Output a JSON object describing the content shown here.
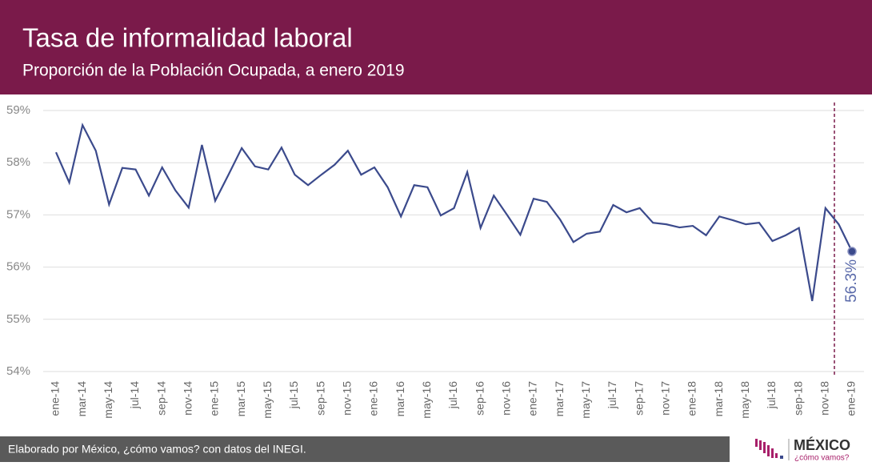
{
  "chart_data": {
    "type": "line",
    "title": "Tasa de informalidad laboral",
    "subtitle": "Proporción de la Población Ocupada, a enero 2019",
    "categories": [
      "ene-14",
      null,
      "mar-14",
      null,
      "may-14",
      null,
      "jul-14",
      null,
      "sep-14",
      null,
      "nov-14",
      null,
      "ene-15",
      null,
      "mar-15",
      null,
      "may-15",
      null,
      "jul-15",
      null,
      "sep-15",
      null,
      "nov-15",
      null,
      "ene-16",
      null,
      "mar-16",
      null,
      "may-16",
      null,
      "jul-16",
      null,
      "sep-16",
      null,
      "nov-16",
      null,
      "ene-17",
      null,
      "mar-17",
      null,
      "may-17",
      null,
      "jul-17",
      null,
      "sep-17",
      null,
      "nov-17",
      null,
      "ene-18",
      null,
      "mar-18",
      null,
      "may-18",
      null,
      "jul-18",
      null,
      "sep-18",
      null,
      "nov-18",
      null,
      "ene-19"
    ],
    "series": [
      {
        "color": "#3b4a8c",
        "values": [
          58.2,
          57.62,
          58.72,
          58.23,
          57.2,
          57.9,
          57.87,
          57.37,
          57.91,
          57.47,
          57.14,
          58.34,
          57.27,
          57.77,
          58.28,
          57.93,
          57.87,
          58.29,
          57.77,
          57.57,
          57.77,
          57.96,
          58.23,
          57.77,
          57.91,
          57.53,
          56.97,
          57.57,
          57.53,
          56.99,
          57.13,
          57.82,
          56.75,
          57.37,
          57.0,
          56.62,
          57.31,
          57.25,
          56.91,
          56.48,
          56.64,
          56.68,
          57.19,
          57.05,
          57.13,
          56.85,
          56.82,
          56.76,
          56.79,
          56.61,
          56.97,
          56.9,
          56.82,
          56.85,
          56.5,
          56.61,
          56.75,
          55.35,
          57.13,
          56.82,
          56.3
        ],
        "value_labels": [
          null,
          null,
          null,
          null,
          null,
          null,
          null,
          null,
          null,
          null,
          null,
          null,
          null,
          null,
          null,
          null,
          null,
          null,
          null,
          null,
          null,
          null,
          null,
          null,
          null,
          null,
          null,
          null,
          null,
          null,
          null,
          null,
          null,
          null,
          null,
          null,
          null,
          null,
          null,
          null,
          null,
          null,
          null,
          null,
          null,
          null,
          null,
          null,
          null,
          null,
          null,
          null,
          null,
          null,
          null,
          null,
          null,
          null,
          null,
          null,
          "56.3%"
        ]
      }
    ],
    "ylim": [
      54,
      59
    ],
    "yticks": [
      {
        "value": 54,
        "label": "54%"
      },
      {
        "value": 55,
        "label": "55%"
      },
      {
        "value": 56,
        "label": "56%"
      },
      {
        "value": 57,
        "label": "57%"
      },
      {
        "value": 58,
        "label": "58%"
      },
      {
        "value": 59,
        "label": "59%"
      }
    ],
    "grid": true
  },
  "footer": {
    "text": "Elaborado por México, ¿cómo vamos? con datos del INEGI.",
    "logo_title": "MÉXICO",
    "logo_subtitle": "¿cómo vamos?"
  }
}
